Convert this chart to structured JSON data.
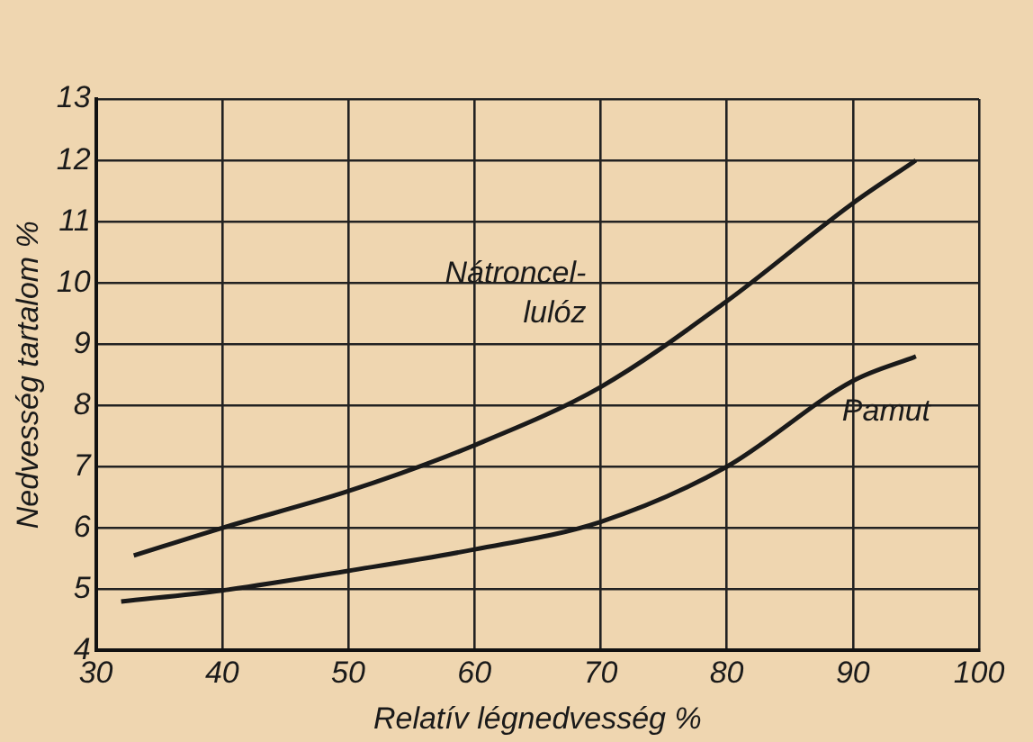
{
  "chart_data": {
    "type": "line",
    "xlabel": "Relatív légnedvesség %",
    "ylabel": "Nedvesség tartalom %",
    "xlim": [
      30,
      100
    ],
    "xticks": [
      30,
      40,
      50,
      60,
      70,
      80,
      90,
      100
    ],
    "ylim": [
      4,
      13
    ],
    "yticks": [
      4,
      5,
      6,
      7,
      8,
      9,
      10,
      11,
      12,
      13
    ],
    "grid": true,
    "legend": false,
    "marker": "none",
    "line_style": "solid",
    "series": [
      {
        "name": "Nátroncel- lulóz",
        "color": "#1a1a1a",
        "x": [
          33,
          40,
          50,
          60,
          70,
          80,
          90,
          95
        ],
        "values": [
          5.55,
          6.0,
          6.6,
          7.35,
          8.3,
          9.7,
          11.3,
          12.0
        ]
      },
      {
        "name": "Pamut",
        "color": "#1a1a1a",
        "x": [
          32,
          40,
          50,
          60,
          70,
          80,
          90,
          95
        ],
        "values": [
          4.8,
          4.98,
          5.3,
          5.65,
          6.1,
          7.0,
          8.4,
          8.8
        ]
      }
    ]
  }
}
